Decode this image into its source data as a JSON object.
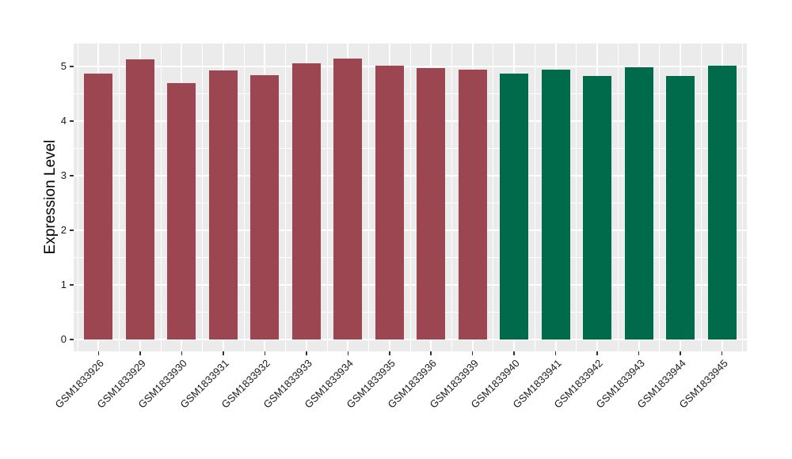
{
  "chart_data": {
    "type": "bar",
    "title": "",
    "xlabel": "",
    "ylabel": "Expression Level",
    "categories": [
      "GSM1833926",
      "GSM1833929",
      "GSM1833930",
      "GSM1833931",
      "GSM1833932",
      "GSM1833933",
      "GSM1833934",
      "GSM1833935",
      "GSM1833936",
      "GSM1833939",
      "GSM1833940",
      "GSM1833941",
      "GSM1833942",
      "GSM1833943",
      "GSM1833944",
      "GSM1833945"
    ],
    "values": [
      4.87,
      5.13,
      4.7,
      4.92,
      4.84,
      5.06,
      5.14,
      5.02,
      4.97,
      4.94,
      4.87,
      4.94,
      4.83,
      4.98,
      4.83,
      5.02
    ],
    "groups": [
      {
        "name": "group-red",
        "color": "#9C4652",
        "members": [
          "GSM1833926",
          "GSM1833929",
          "GSM1833930",
          "GSM1833931",
          "GSM1833932",
          "GSM1833933",
          "GSM1833934",
          "GSM1833935",
          "GSM1833936",
          "GSM1833939"
        ]
      },
      {
        "name": "group-green",
        "color": "#006B4B",
        "members": [
          "GSM1833940",
          "GSM1833941",
          "GSM1833942",
          "GSM1833943",
          "GSM1833944",
          "GSM1833945"
        ]
      }
    ],
    "bar_colors": [
      "#9C4652",
      "#9C4652",
      "#9C4652",
      "#9C4652",
      "#9C4652",
      "#9C4652",
      "#9C4652",
      "#9C4652",
      "#9C4652",
      "#9C4652",
      "#006B4B",
      "#006B4B",
      "#006B4B",
      "#006B4B",
      "#006B4B",
      "#006B4B"
    ],
    "yticks": [
      0,
      1,
      2,
      3,
      4,
      5
    ],
    "ylim": [
      -0.22,
      5.42
    ],
    "grid": "on",
    "legend": "none",
    "style": {
      "panel_background": "#EBEBEB",
      "gridline_color": "#FFFFFF",
      "tick_mark_color": "#333333",
      "axis_text_color": "#1A1A1A",
      "axis_title_color": "#000000"
    }
  }
}
